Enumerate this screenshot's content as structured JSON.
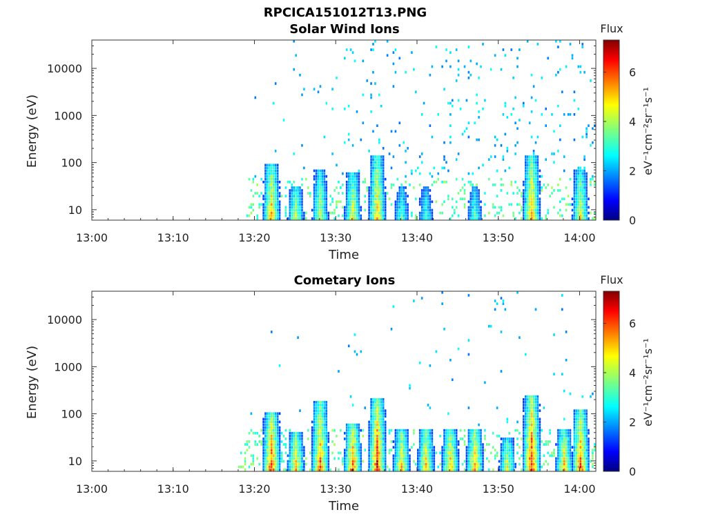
{
  "figure_title": "RPCICA151012T13.PNG",
  "chart_data": [
    {
      "type": "heatmap",
      "title": "Solar Wind Ions",
      "xlabel": "Time",
      "ylabel": "Energy (eV)",
      "xticks": [
        "13:00",
        "13:10",
        "13:20",
        "13:30",
        "13:40",
        "13:50",
        "14:00"
      ],
      "xlim_minutes": [
        0,
        62
      ],
      "yscale": "log",
      "yticks": [
        "10",
        "100",
        "1000",
        "10000"
      ],
      "ylim": [
        6,
        40000
      ],
      "colorbar": {
        "label": "Flux",
        "unit": "eV⁻¹cm⁻²sr⁻¹s⁻¹",
        "ticks": [
          "0",
          "2",
          "4",
          "6"
        ],
        "range": [
          0,
          7.3
        ],
        "colormap": "jet"
      },
      "data_start": "13:19",
      "bursts": [
        {
          "time": "13:22",
          "peak_flux": 5.8,
          "top_energy": 90
        },
        {
          "time": "13:25",
          "peak_flux": 4.8,
          "top_energy": 30
        },
        {
          "time": "13:28",
          "peak_flux": 4.6,
          "top_energy": 70
        },
        {
          "time": "13:32",
          "peak_flux": 5.0,
          "top_energy": 60
        },
        {
          "time": "13:35",
          "peak_flux": 5.6,
          "top_energy": 150
        },
        {
          "time": "13:38",
          "peak_flux": 3.6,
          "top_energy": 30
        },
        {
          "time": "13:41",
          "peak_flux": 3.4,
          "top_energy": 30
        },
        {
          "time": "13:47",
          "peak_flux": 3.6,
          "top_energy": 30
        },
        {
          "time": "13:54",
          "peak_flux": 6.0,
          "top_energy": 150
        },
        {
          "time": "14:00",
          "peak_flux": 5.0,
          "top_energy": 70
        }
      ]
    },
    {
      "type": "heatmap",
      "title": "Cometary Ions",
      "xlabel": "Time",
      "ylabel": "Energy (eV)",
      "xticks": [
        "13:00",
        "13:10",
        "13:20",
        "13:30",
        "13:40",
        "13:50",
        "14:00"
      ],
      "xlim_minutes": [
        0,
        62
      ],
      "yscale": "log",
      "yticks": [
        "10",
        "100",
        "1000",
        "10000"
      ],
      "ylim": [
        6,
        40000
      ],
      "colorbar": {
        "label": "Flux",
        "unit": "eV⁻¹cm⁻²sr⁻¹s⁻¹",
        "ticks": [
          "0",
          "2",
          "4",
          "6"
        ],
        "range": [
          0,
          7.3
        ],
        "colormap": "jet"
      },
      "data_start": "13:18",
      "bursts": [
        {
          "time": "13:22",
          "peak_flux": 6.8,
          "top_energy": 110
        },
        {
          "time": "13:25",
          "peak_flux": 5.8,
          "top_energy": 40
        },
        {
          "time": "13:28",
          "peak_flux": 6.2,
          "top_energy": 200
        },
        {
          "time": "13:32",
          "peak_flux": 6.6,
          "top_energy": 60
        },
        {
          "time": "13:35",
          "peak_flux": 7.0,
          "top_energy": 220
        },
        {
          "time": "13:38",
          "peak_flux": 5.6,
          "top_energy": 50
        },
        {
          "time": "13:41",
          "peak_flux": 5.6,
          "top_energy": 50
        },
        {
          "time": "13:44",
          "peak_flux": 5.8,
          "top_energy": 50
        },
        {
          "time": "13:47",
          "peak_flux": 6.0,
          "top_energy": 50
        },
        {
          "time": "13:51",
          "peak_flux": 5.0,
          "top_energy": 30
        },
        {
          "time": "13:54",
          "peak_flux": 7.1,
          "top_energy": 250
        },
        {
          "time": "13:58",
          "peak_flux": 5.6,
          "top_energy": 50
        },
        {
          "time": "14:00",
          "peak_flux": 6.4,
          "top_energy": 130
        }
      ]
    }
  ]
}
